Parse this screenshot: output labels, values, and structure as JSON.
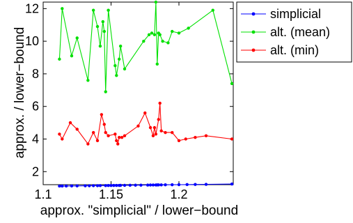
{
  "chart_data": {
    "type": "line",
    "title": "",
    "xlabel": "approx. \"simplicial\" / lower−bound",
    "ylabel": "approx. / lower−bound",
    "xlim": [
      1.1,
      1.24
    ],
    "ylim": [
      1.2,
      12.4
    ],
    "xticks": [
      1.1,
      1.15,
      1.2
    ],
    "xtick_labels": [
      "1.1",
      "1.15",
      "1.2"
    ],
    "yticks": [
      2,
      4,
      6,
      8,
      10,
      12
    ],
    "ytick_labels": [
      "2",
      "4",
      "6",
      "8",
      "10",
      "12"
    ],
    "grid": false,
    "legend_position": "top-right outside",
    "series": [
      {
        "name": "simplicial",
        "color": "#0000ff",
        "x": [
          1.112,
          1.114,
          1.117,
          1.121,
          1.125,
          1.131,
          1.134,
          1.137,
          1.14,
          1.142,
          1.146,
          1.148,
          1.15,
          1.152,
          1.154,
          1.156,
          1.157,
          1.16,
          1.164,
          1.168,
          1.172,
          1.177,
          1.179,
          1.181,
          1.183,
          1.184,
          1.185,
          1.187,
          1.19,
          1.195,
          1.2,
          1.206,
          1.212,
          1.22,
          1.239
        ],
        "y": [
          1.112,
          1.114,
          1.117,
          1.121,
          1.125,
          1.131,
          1.134,
          1.137,
          1.14,
          1.142,
          1.146,
          1.148,
          1.15,
          1.152,
          1.154,
          1.156,
          1.157,
          1.16,
          1.164,
          1.168,
          1.172,
          1.177,
          1.179,
          1.181,
          1.183,
          1.184,
          1.185,
          1.187,
          1.19,
          1.195,
          1.2,
          1.206,
          1.212,
          1.22,
          1.239
        ]
      },
      {
        "name": "alt. (mean)",
        "color": "#00e000",
        "x": [
          1.112,
          1.114,
          1.121,
          1.125,
          1.133,
          1.137,
          1.14,
          1.142,
          1.144,
          1.145,
          1.146,
          1.148,
          1.153,
          1.154,
          1.156,
          1.157,
          1.16,
          1.174,
          1.178,
          1.18,
          1.182,
          1.183,
          1.184,
          1.185,
          1.186,
          1.188,
          1.192,
          1.195,
          1.2,
          1.207,
          1.225,
          1.239
        ],
        "y": [
          8.9,
          12.0,
          9.1,
          10.2,
          7.6,
          11.9,
          10.9,
          9.7,
          11.2,
          10.6,
          6.9,
          11.9,
          8.5,
          7.9,
          8.9,
          9.7,
          8.3,
          10.0,
          10.4,
          10.5,
          10.4,
          12.4,
          8.6,
          10.5,
          10.4,
          10.0,
          9.9,
          10.6,
          10.5,
          10.8,
          11.9,
          7.4
        ]
      },
      {
        "name": "alt. (min)",
        "color": "#ff0000",
        "x": [
          1.112,
          1.114,
          1.12,
          1.125,
          1.133,
          1.137,
          1.14,
          1.143,
          1.145,
          1.146,
          1.148,
          1.153,
          1.154,
          1.155,
          1.156,
          1.158,
          1.16,
          1.17,
          1.175,
          1.179,
          1.181,
          1.182,
          1.183,
          1.185,
          1.186,
          1.187,
          1.19,
          1.195,
          1.2,
          1.205,
          1.212,
          1.22,
          1.239
        ],
        "y": [
          4.3,
          4.0,
          5.0,
          4.6,
          3.7,
          4.4,
          3.9,
          5.5,
          4.9,
          4.4,
          4.2,
          4.3,
          3.9,
          3.7,
          4.1,
          4.1,
          4.2,
          4.8,
          5.6,
          4.7,
          4.2,
          4.7,
          4.3,
          5.2,
          6.2,
          4.5,
          4.4,
          4.4,
          3.9,
          4.0,
          4.1,
          4.2,
          4.0
        ]
      }
    ]
  }
}
